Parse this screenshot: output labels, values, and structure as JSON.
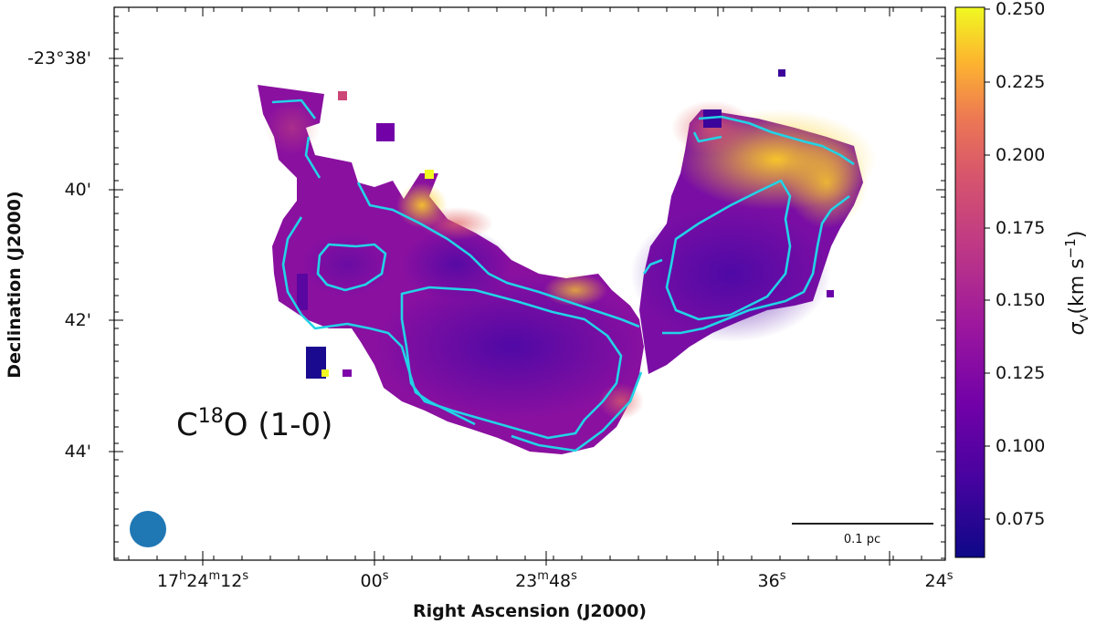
{
  "chart_data": {
    "type": "heatmap",
    "xlabel": "Right Ascension (J2000)",
    "ylabel": "Declination (J2000)",
    "x_ticks": [
      {
        "label": "17",
        "h": "h",
        "m_num": "24",
        "m": "m",
        "s_num": "12",
        "s": "s"
      },
      {
        "label": "00",
        "s": "s"
      },
      {
        "label": "23",
        "m": "m",
        "s_num": "48",
        "s2": "s"
      },
      {
        "label": "36",
        "s": "s"
      },
      {
        "label": "24",
        "s": "s"
      }
    ],
    "y_ticks": [
      "-23°38'",
      "40'",
      "42'",
      "44'"
    ],
    "colorbar": {
      "label": "σ",
      "label_sub": "v",
      "unit": "(km s",
      "unit_exp": "−1",
      "unit_close": ")",
      "cmap": "plasma",
      "ticks": [
        "0.250",
        "0.225",
        "0.200",
        "0.175",
        "0.150",
        "0.125",
        "0.100",
        "0.075"
      ],
      "range": [
        0.06,
        0.25
      ]
    },
    "annotation": {
      "mol": "C",
      "iso": "18",
      "rest": "O (1-0)"
    },
    "scalebar_label": "0.1 pc",
    "beam_color": "#1f77b4",
    "contour_color": "#22d3e6"
  }
}
